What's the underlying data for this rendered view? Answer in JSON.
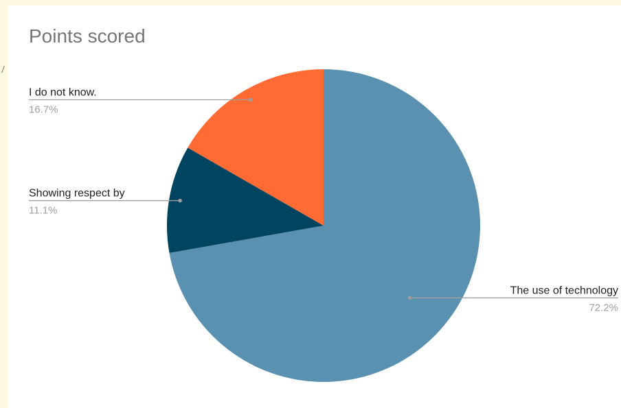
{
  "chart_data": {
    "type": "pie",
    "title": "Points scored",
    "categories": [
      "The use of technology",
      "Showing respect by",
      "I do not know."
    ],
    "values": [
      72.2,
      11.1,
      16.7
    ],
    "percent_labels": [
      "72.2%",
      "11.1%",
      "16.7%"
    ],
    "colors": [
      "#5a91b0",
      "#01445f",
      "#ff6b33"
    ],
    "legend": "none",
    "label_style": "outside-with-leader-lines"
  }
}
